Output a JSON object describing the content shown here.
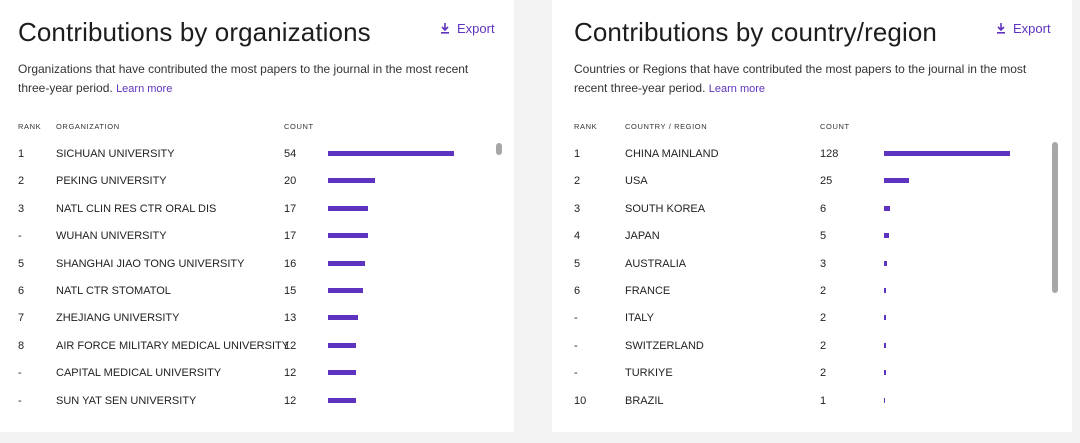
{
  "panels": [
    {
      "title": "Contributions by organizations",
      "export_label": "Export",
      "description": "Organizations that have contributed the most papers to the journal in the most recent three-year period.",
      "learn_more": "Learn more",
      "headers": {
        "rank": "RANK",
        "name": "ORGANIZATION",
        "count": "COUNT"
      }
    },
    {
      "title": "Contributions by country/region",
      "export_label": "Export",
      "description": "Countries or Regions that have contributed the most papers to the journal in the most recent three-year period.",
      "learn_more": "Learn more",
      "headers": {
        "rank": "RANK",
        "name": "COUNTRY / REGION",
        "count": "COUNT"
      }
    }
  ],
  "colors": {
    "accent": "#5e33bf",
    "scrollbar": "#a7a7a7"
  },
  "icons": {
    "export": "download-icon"
  },
  "chart_data": [
    {
      "type": "bar",
      "orientation": "horizontal",
      "title": "Contributions by organizations",
      "max_value": 54,
      "rows": [
        {
          "rank": "1",
          "name": "SICHUAN UNIVERSITY",
          "count": 54
        },
        {
          "rank": "2",
          "name": "PEKING UNIVERSITY",
          "count": 20
        },
        {
          "rank": "3",
          "name": "NATL CLIN RES CTR ORAL DIS",
          "count": 17
        },
        {
          "rank": "-",
          "name": "WUHAN UNIVERSITY",
          "count": 17
        },
        {
          "rank": "5",
          "name": "SHANGHAI JIAO TONG UNIVERSITY",
          "count": 16
        },
        {
          "rank": "6",
          "name": "NATL CTR STOMATOL",
          "count": 15
        },
        {
          "rank": "7",
          "name": "ZHEJIANG UNIVERSITY",
          "count": 13
        },
        {
          "rank": "8",
          "name": "AIR FORCE MILITARY MEDICAL UNIVERSITY",
          "count": 12
        },
        {
          "rank": "-",
          "name": "CAPITAL MEDICAL UNIVERSITY",
          "count": 12
        },
        {
          "rank": "-",
          "name": "SUN YAT SEN UNIVERSITY",
          "count": 12
        }
      ]
    },
    {
      "type": "bar",
      "orientation": "horizontal",
      "title": "Contributions by country/region",
      "max_value": 128,
      "rows": [
        {
          "rank": "1",
          "name": "CHINA MAINLAND",
          "count": 128
        },
        {
          "rank": "2",
          "name": "USA",
          "count": 25
        },
        {
          "rank": "3",
          "name": "SOUTH KOREA",
          "count": 6
        },
        {
          "rank": "4",
          "name": "JAPAN",
          "count": 5
        },
        {
          "rank": "5",
          "name": "AUSTRALIA",
          "count": 3
        },
        {
          "rank": "6",
          "name": "FRANCE",
          "count": 2
        },
        {
          "rank": "-",
          "name": "ITALY",
          "count": 2
        },
        {
          "rank": "-",
          "name": "SWITZERLAND",
          "count": 2
        },
        {
          "rank": "-",
          "name": "TURKIYE",
          "count": 2
        },
        {
          "rank": "10",
          "name": "BRAZIL",
          "count": 1
        }
      ]
    }
  ]
}
